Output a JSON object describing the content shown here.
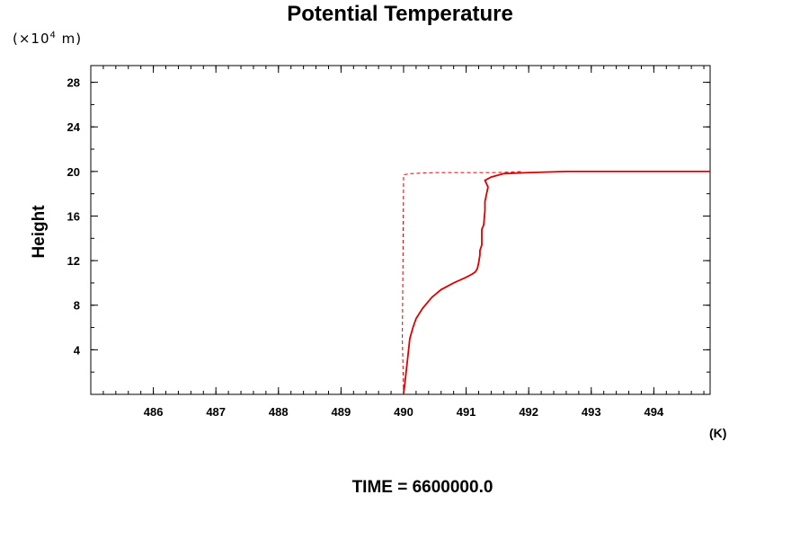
{
  "title": "Potential Temperature",
  "y_unit": {
    "prefix": "(×10",
    "exp": "4",
    "suffix": " m)"
  },
  "x_unit": "(K)",
  "time_label": "TIME = 6600000.0",
  "chart_data": {
    "type": "line",
    "title": "Potential Temperature",
    "xlabel": "(K)",
    "ylabel": "Height",
    "xlim": [
      485.0,
      494.9
    ],
    "ylim": [
      0,
      29.5
    ],
    "x_ticks": [
      486,
      487,
      488,
      489,
      490,
      491,
      492,
      493,
      494
    ],
    "y_ticks": [
      4,
      8,
      12,
      16,
      20,
      24,
      28
    ],
    "grid": false,
    "series": [
      {
        "style": "solid",
        "color": "#dd0000",
        "x": [
          490.0,
          490.03,
          490.06,
          490.1,
          490.15,
          490.2,
          490.3,
          490.45,
          490.6,
          490.8,
          491.0,
          491.1,
          491.15,
          491.18,
          491.2,
          491.22,
          491.22,
          491.25,
          491.25,
          491.28,
          491.3,
          491.3,
          491.32,
          491.35,
          491.3,
          491.4,
          491.6,
          492.0,
          492.6,
          493.5,
          494.9
        ],
        "y": [
          0.0,
          1.5,
          3.0,
          5.0,
          6.0,
          6.8,
          7.7,
          8.7,
          9.4,
          10.0,
          10.5,
          10.8,
          11.0,
          11.3,
          11.8,
          12.5,
          12.9,
          13.4,
          14.8,
          15.2,
          16.5,
          17.3,
          17.8,
          18.6,
          19.2,
          19.5,
          19.8,
          19.9,
          20.0,
          20.0,
          20.0
        ]
      },
      {
        "style": "dashed",
        "color": "#dd0000",
        "x": [
          490.0,
          489.98,
          490.0,
          490.1,
          490.5,
          491.0,
          491.5,
          491.9
        ],
        "y": [
          0.0,
          5.0,
          19.7,
          19.8,
          19.9,
          19.9,
          19.9,
          20.0
        ]
      }
    ]
  }
}
